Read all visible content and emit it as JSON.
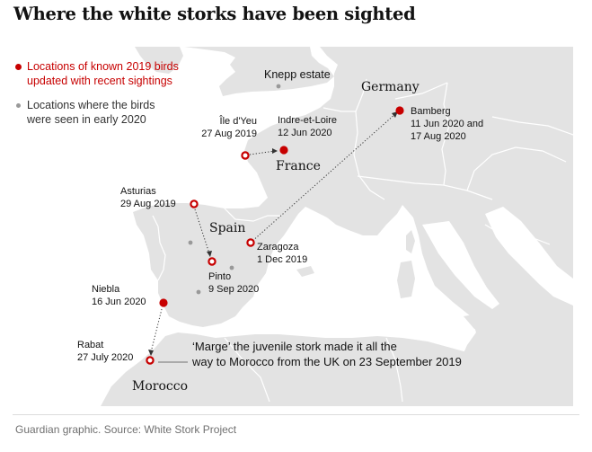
{
  "title": "Where the white storks have been sighted",
  "legend": {
    "red": {
      "line1": "Locations of known 2019 birds",
      "line2": "updated with recent sightings"
    },
    "grey": {
      "line1": "Locations where the birds",
      "line2": "were seen in early 2020"
    }
  },
  "countries": {
    "germany": "Germany",
    "france": "France",
    "spain": "Spain",
    "morocco": "Morocco"
  },
  "places": {
    "knepp": {
      "name": "Knepp estate"
    },
    "ile_dyeu": {
      "name": "Île d'Yeu",
      "date": "27 Aug 2019"
    },
    "indre": {
      "name": "Indre-et-Loire",
      "date": "12 Jun 2020"
    },
    "bamberg": {
      "name": "Bamberg",
      "date1": "11 Jun 2020 and",
      "date2": "17 Aug 2020"
    },
    "asturias": {
      "name": "Asturias",
      "date": "29 Aug 2019"
    },
    "zaragoza": {
      "name": "Zaragoza",
      "date": "1 Dec 2019"
    },
    "pinto": {
      "name": "Pinto",
      "date": "9 Sep 2020"
    },
    "niebla": {
      "name": "Niebla",
      "date": "16 Jun 2020"
    },
    "rabat": {
      "name": "Rabat",
      "date": "27 July 2020"
    }
  },
  "annotation": {
    "line1": "‘Marge’ the juvenile stork made it all the",
    "line2": "way to Morocco from the UK on 23 September 2019"
  },
  "source": "Guardian graphic. Source: White Stork Project",
  "colors": {
    "red": "#c70000",
    "grey": "#999999",
    "land": "#e3e3e3",
    "sea": "#ffffff",
    "border": "#ffffff"
  }
}
